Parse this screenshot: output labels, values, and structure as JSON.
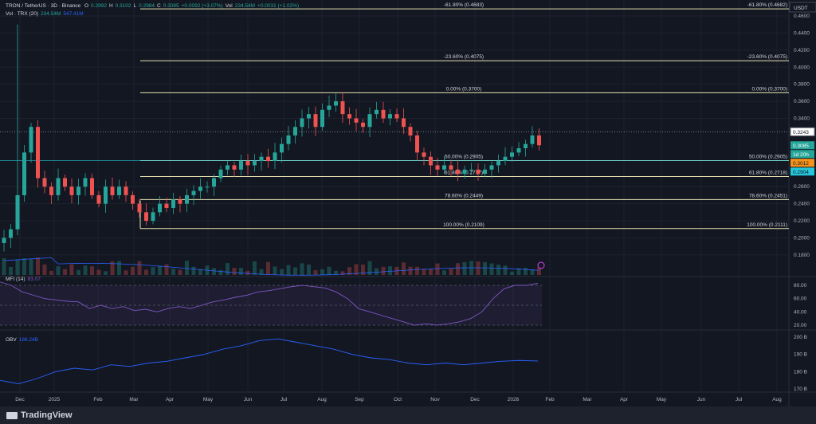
{
  "header": {
    "symbol": "TRON / TetherUS · 3D · Binance",
    "o_label": "O",
    "o": "0.2992",
    "h_label": "H",
    "h": "0.3102",
    "l_label": "L",
    "l": "0.2984",
    "c_label": "C",
    "c": "0.3085",
    "change": "+0.0092 (+3.07%)",
    "vol_label": "Vol",
    "vol": "234.54M",
    "vol_change": "+0.0031 (+1.02%)",
    "vol_ind": "Vol · TRX (20)",
    "vol_val": "234.54M",
    "vol_ma": "547.41M"
  },
  "mfi": {
    "label": "MFI (14)",
    "value": "83.07"
  },
  "obv": {
    "label": "OBV",
    "value": "186.24B"
  },
  "footer": {
    "brand": "TradingView"
  },
  "colors": {
    "up": "#26a69a",
    "down": "#ef5350",
    "fib": "#e8e3b0",
    "mfi": "#7e57c2",
    "obv": "#2962ff",
    "accent_orange": "#f7931a",
    "accent_teal": "#26c6da"
  },
  "chart_data": {
    "type": "candlestick",
    "currency": "USDT",
    "price_ticks": [
      "0.4600",
      "0.4400",
      "0.4200",
      "0.4000",
      "0.3800",
      "0.3600",
      "0.3400",
      "0.2600",
      "0.2400",
      "0.2200",
      "0.2000",
      "0.1800"
    ],
    "price_range": [
      0.165,
      0.475
    ],
    "price_labels": [
      {
        "text": "0.3243",
        "value": 0.3243,
        "style": "white"
      },
      {
        "text": "0.3085",
        "value": 0.3085,
        "style": "green"
      },
      {
        "text": "1d 20h",
        "value": 0.3045,
        "style": "green"
      },
      {
        "text": "0.3012",
        "value": 0.3012,
        "style": "orange"
      },
      {
        "text": "0.2904",
        "value": 0.2904,
        "style": "teal"
      }
    ],
    "time_ticks": [
      "Dec",
      "2025",
      "Feb",
      "Mar",
      "Apr",
      "May",
      "Jun",
      "Jul",
      "Aug",
      "Sep",
      "Oct",
      "Nov",
      "Dec",
      "2026",
      "Feb",
      "Mar",
      "Apr",
      "May",
      "Jun",
      "Jul",
      "Aug"
    ],
    "closes": [
      0.2,
      0.21,
      0.25,
      0.3,
      0.33,
      0.27,
      0.26,
      0.25,
      0.27,
      0.26,
      0.25,
      0.26,
      0.27,
      0.25,
      0.24,
      0.26,
      0.25,
      0.26,
      0.25,
      0.24,
      0.23,
      0.22,
      0.23,
      0.24,
      0.235,
      0.245,
      0.24,
      0.25,
      0.255,
      0.26,
      0.26,
      0.27,
      0.28,
      0.285,
      0.28,
      0.29,
      0.285,
      0.29,
      0.295,
      0.29,
      0.3,
      0.31,
      0.32,
      0.33,
      0.34,
      0.345,
      0.33,
      0.35,
      0.355,
      0.36,
      0.345,
      0.34,
      0.335,
      0.33,
      0.345,
      0.35,
      0.34,
      0.345,
      0.34,
      0.33,
      0.32,
      0.3,
      0.295,
      0.285,
      0.28,
      0.285,
      0.28,
      0.275,
      0.28,
      0.28,
      0.275,
      0.28,
      0.285,
      0.29,
      0.295,
      0.3,
      0.305,
      0.31,
      0.32,
      0.3085
    ],
    "fib_levels": [
      {
        "left": "-61.80% (0.4683)",
        "right": "-61.80% (0.4682)",
        "value": 0.4683
      },
      {
        "left": "-23.60% (0.4075)",
        "right": "-23.60% (0.4075)",
        "value": 0.4075
      },
      {
        "left": "0.00% (0.3700)",
        "right": "0.00% (0.3700)",
        "value": 0.37
      },
      {
        "left": "50.00% (0.2905)",
        "right": "50.00% (0.2905)",
        "value": 0.2905
      },
      {
        "left": "61.80% (0.2717)",
        "right": "61.80% (0.2718)",
        "value": 0.2718
      },
      {
        "left": "78.60% (0.2449)",
        "right": "78.60% (0.2451)",
        "value": 0.2449
      },
      {
        "left": "100.00% (0.2109)",
        "right": "100.00% (0.2111)",
        "value": 0.2109
      }
    ],
    "mfi_ticks": [
      "80.00",
      "60.00",
      "40.00",
      "20.00"
    ],
    "mfi_values": [
      85,
      80,
      70,
      65,
      60,
      58,
      56,
      55,
      45,
      50,
      45,
      48,
      42,
      44,
      40,
      45,
      48,
      45,
      50,
      55,
      58,
      62,
      65,
      70,
      72,
      75,
      78,
      80,
      78,
      76,
      70,
      60,
      45,
      40,
      35,
      30,
      25,
      20,
      22,
      20,
      22,
      25,
      30,
      40,
      60,
      75,
      80,
      80,
      83
    ],
    "obv_ticks": [
      "200 B",
      "190 B",
      "180 B",
      "170 B"
    ],
    "obv_values": [
      175,
      173,
      176,
      180,
      182,
      181,
      184,
      183,
      185,
      186,
      188,
      190,
      193,
      195,
      198,
      199,
      197,
      195,
      193,
      190,
      188,
      187,
      185,
      184,
      185,
      184,
      185,
      186,
      186.5,
      186.2
    ]
  }
}
